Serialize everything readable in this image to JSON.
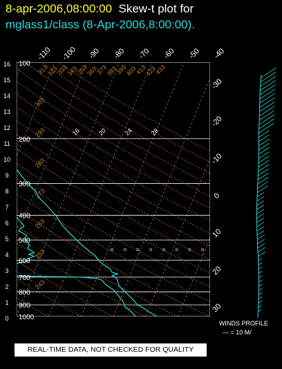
{
  "header": {
    "date": "8-apr-2006,08:00:00",
    "title": "Skew-t plot for",
    "subtitle": "mglass1/class (8-Apr-2006,8:00:00)."
  },
  "colors": {
    "date": "#ffff33",
    "title": "#ffffff",
    "subtitle": "#2fd9d9",
    "trace": "#2fd9d9",
    "isobar": "#ffffff",
    "isotherm": "#ffffff",
    "dry_adiabat": "#c8822a",
    "moist_adiabat": "#ffffff",
    "mixing_ratio": "#ffffff"
  },
  "chart_data": [
    {
      "type": "line",
      "title": "",
      "pressure_labels": [
        "100",
        "200",
        "300",
        "400",
        "500",
        "600",
        "700",
        "800",
        "900",
        "1000"
      ],
      "height_labels": [
        "16",
        "15",
        "14",
        "13",
        "12",
        "11",
        "10",
        "9",
        "8",
        "7",
        "6",
        "5",
        "4",
        "3",
        "2",
        "1",
        "0"
      ],
      "temperature_top_labels": [
        "-110",
        "-100",
        "-90",
        "-80",
        "-70",
        "-60",
        "-50",
        "-40"
      ],
      "temperature_right_labels": [
        "-30",
        "-20",
        "-10",
        "0",
        "10",
        "20",
        "30"
      ],
      "dry_adiabat_labels": [
        "313",
        "323",
        "333",
        "343",
        "353",
        "363",
        "373",
        "383",
        "393",
        "403",
        "413",
        "423",
        "433",
        "303",
        "293",
        "283",
        "273",
        "263",
        "253",
        "243"
      ],
      "mixing_ratio_labels": [
        "16",
        "20",
        "24",
        "28"
      ],
      "grid": true,
      "xlim": [
        -30,
        30
      ],
      "pressure_range": [
        1000,
        100
      ],
      "series": [
        {
          "values": [
            [
              1000,
              13.5
            ],
            [
              960,
              10.5
            ],
            [
              930,
              8.5
            ],
            [
              900,
              6.0
            ],
            [
              850,
              3.5
            ],
            [
              800,
              0.5
            ],
            [
              760,
              -2.0
            ],
            [
              730,
              -3.0
            ],
            [
              715,
              -3.5
            ],
            [
              700,
              -4.5
            ],
            [
              690,
              -5.5
            ],
            [
              680,
              -4.0
            ],
            [
              670,
              -6.0
            ],
            [
              650,
              -7.0
            ],
            [
              630,
              -9.0
            ],
            [
              610,
              -11.0
            ],
            [
              580,
              -13.0
            ],
            [
              550,
              -16.0
            ],
            [
              520,
              -19.0
            ],
            [
              500,
              -21.0
            ],
            [
              470,
              -24.0
            ],
            [
              440,
              -27.0
            ],
            [
              400,
              -30.5
            ],
            [
              370,
              -34.0
            ],
            [
              340,
              -38.0
            ],
            [
              320,
              -40.0
            ],
            [
              300,
              -43.0
            ],
            [
              280,
              -46.0
            ],
            [
              260,
              -49.0
            ],
            [
              240,
              -52.0
            ],
            [
              220,
              -54.5
            ],
            [
              200,
              -56.5
            ],
            [
              185,
              -56.0
            ],
            [
              170,
              -58.0
            ],
            [
              155,
              -58.5
            ],
            [
              140,
              -60.0
            ],
            [
              130,
              -60.5
            ],
            [
              120,
              -61.5
            ],
            [
              112,
              -63.0
            ],
            [
              105,
              -64.0
            ],
            [
              100,
              -65.5
            ]
          ]
        },
        {
          "values": [
            [
              1000,
              7.0
            ],
            [
              970,
              5.5
            ],
            [
              940,
              4.0
            ],
            [
              920,
              2.5
            ],
            [
              900,
              2.0
            ],
            [
              870,
              1.0
            ],
            [
              850,
              0.0
            ],
            [
              820,
              -1.5
            ],
            [
              790,
              -3.0
            ],
            [
              760,
              -5.5
            ],
            [
              740,
              -7.0
            ],
            [
              720,
              -8.0
            ],
            [
              710,
              -9.5
            ],
            [
              700,
              -15.0
            ],
            [
              695,
              -30.0
            ],
            [
              690,
              -40.0
            ],
            [
              680,
              -42.0
            ],
            [
              670,
              -44.0
            ],
            [
              660,
              -46.0
            ],
            [
              650,
              -45.0
            ],
            [
              640,
              -43.0
            ],
            [
              630,
              -40.0
            ],
            [
              620,
              -37.0
            ],
            [
              610,
              -34.0
            ],
            [
              600,
              -33.0
            ],
            [
              590,
              -33.5
            ],
            [
              580,
              -32.0
            ],
            [
              570,
              -34.0
            ],
            [
              560,
              -32.5
            ],
            [
              540,
              -35.0
            ],
            [
              520,
              -35.0
            ],
            [
              500,
              -37.0
            ],
            [
              480,
              -37.0
            ],
            [
              460,
              -40.0
            ],
            [
              440,
              -39.0
            ],
            [
              420,
              -41.0
            ],
            [
              400,
              -43.0
            ],
            [
              380,
              -46.0
            ],
            [
              360,
              -48.0
            ],
            [
              340,
              -52.0
            ],
            [
              320,
              -55.0
            ],
            [
              300,
              -60.0
            ],
            [
              285,
              -63.0
            ],
            [
              270,
              -66.0
            ],
            [
              260,
              -65.5
            ],
            [
              250,
              -68.0
            ],
            [
              240,
              -68.5
            ],
            [
              230,
              -70.0
            ],
            [
              220,
              -72.0
            ],
            [
              210,
              -74.0
            ],
            [
              200,
              -77.0
            ],
            [
              190,
              -80.0
            ],
            [
              180,
              -82.0
            ],
            [
              170,
              -84.0
            ],
            [
              160,
              -84.5
            ],
            [
              150,
              -84.0
            ],
            [
              140,
              -85.0
            ],
            [
              130,
              -84.0
            ],
            [
              120,
              -82.0
            ],
            [
              110,
              -80.5
            ],
            [
              100,
              -80.0
            ]
          ]
        }
      ]
    },
    {
      "type": "line",
      "title": "WINDS PROFILE",
      "legend": "— = 10 M/",
      "height_range": [
        0,
        16
      ]
    }
  ]
}
